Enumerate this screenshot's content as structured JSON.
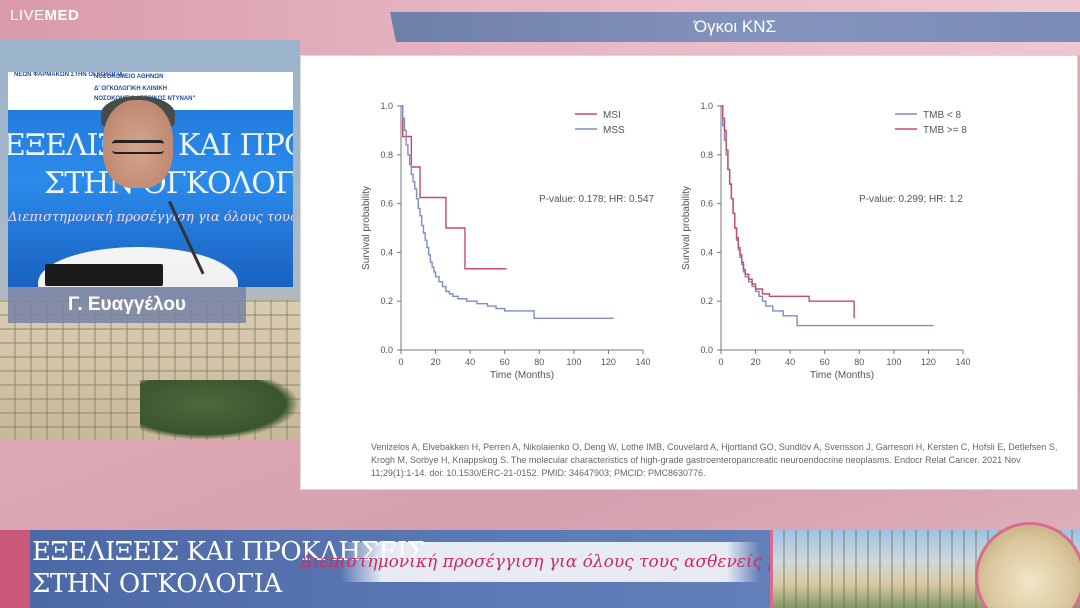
{
  "header": {
    "logo_light": "LIVE",
    "logo_bold": "MED",
    "session_title": "Όγκοι ΚΝΣ"
  },
  "speaker": {
    "name": "Γ. Ευαγγέλου",
    "backdrop_line1": "ΕΞΕΛΙΞΕΙΣ ΚΑΙ ΠΡΟΚΛΗΣΕΙΣ",
    "backdrop_line2": "ΣΤΗΝ ΟΓΚΟΛΟΓΙΑ",
    "backdrop_slogan": "Διεπιστημονική προσέγγιση για όλους τους ασθενείς μας",
    "backdrop_org1": "ΝΕΩΝ ΦΑΡΜΑΚΩΝ ΣΤΗΝ ΟΓΚΟΛΟΓΙΑ",
    "backdrop_org2": "ΝΟΣΟΚΟΜΕΙΟ ΑΘΗΝΩΝ",
    "backdrop_org3": "Δ' ΟΓΚΟΛΟΓΙΚΗ ΚΛΙΝΙΚΗ",
    "backdrop_org4": "ΝΟΣΟΚΟΜΕΙΟ \"ΕΡΡΙΚΟΣ ΝΤΥΝΑΝ\""
  },
  "slide": {
    "citation": "Venizelos A, Elvebakken H, Perren A, Nikolaienko O, Deng W, Lothe IMB, Couvelard A, Hjortland GO, Sundlöv A, Svensson J, Garresori H, Kersten C, Hofsli E, Detlefsen S, Krogh M, Sorbye H, Knappskog S. The molecular characteristics of high-grade gastroenteropancreatic neuroendocrine neoplasms. Endocr Relat Cancer. 2021 Nov 11;29(1):1-14. doi: 10.1530/ERC-21-0152. PMID: 34647903; PMCID: PMC8630776."
  },
  "chart_data": [
    {
      "type": "line",
      "xlabel": "Time (Months)",
      "ylabel": "Survival probability",
      "xlim": [
        0,
        140
      ],
      "ylim": [
        0,
        1.0
      ],
      "xticks": [
        0,
        20,
        40,
        60,
        80,
        100,
        120,
        140
      ],
      "yticks": [
        0.0,
        0.2,
        0.4,
        0.6,
        0.8,
        1.0
      ],
      "annotation": "P-value: 0.178; HR: 0.547",
      "legend_position": "top-right",
      "series": [
        {
          "name": "MSI",
          "color": "#c9496a",
          "step_points": [
            [
              0,
              1.0
            ],
            [
              1,
              0.875
            ],
            [
              5,
              0.875
            ],
            [
              6,
              0.75
            ],
            [
              10,
              0.75
            ],
            [
              11,
              0.625
            ],
            [
              25,
              0.625
            ],
            [
              26,
              0.5
            ],
            [
              36,
              0.5
            ],
            [
              37,
              0.333
            ],
            [
              61,
              0.333
            ]
          ]
        },
        {
          "name": "MSS",
          "color": "#7e8cc8",
          "step_points": [
            [
              0,
              1.0
            ],
            [
              1,
              0.95
            ],
            [
              2,
              0.9
            ],
            [
              3,
              0.84
            ],
            [
              4,
              0.8
            ],
            [
              5,
              0.76
            ],
            [
              6,
              0.72
            ],
            [
              7,
              0.69
            ],
            [
              8,
              0.66
            ],
            [
              9,
              0.62
            ],
            [
              10,
              0.58
            ],
            [
              11,
              0.55
            ],
            [
              12,
              0.51
            ],
            [
              13,
              0.48
            ],
            [
              14,
              0.45
            ],
            [
              15,
              0.42
            ],
            [
              16,
              0.39
            ],
            [
              17,
              0.36
            ],
            [
              18,
              0.34
            ],
            [
              19,
              0.32
            ],
            [
              20,
              0.3
            ],
            [
              22,
              0.28
            ],
            [
              24,
              0.26
            ],
            [
              26,
              0.24
            ],
            [
              28,
              0.23
            ],
            [
              30,
              0.22
            ],
            [
              33,
              0.21
            ],
            [
              38,
              0.2
            ],
            [
              44,
              0.19
            ],
            [
              50,
              0.18
            ],
            [
              55,
              0.17
            ],
            [
              60,
              0.16
            ],
            [
              76,
              0.16
            ],
            [
              77,
              0.13
            ],
            [
              123,
              0.13
            ]
          ]
        }
      ]
    },
    {
      "type": "line",
      "xlabel": "Time (Months)",
      "ylabel": "Survival probability",
      "xlim": [
        0,
        140
      ],
      "ylim": [
        0,
        1.0
      ],
      "xticks": [
        0,
        20,
        40,
        60,
        80,
        100,
        120,
        140
      ],
      "yticks": [
        0.0,
        0.2,
        0.4,
        0.6,
        0.8,
        1.0
      ],
      "annotation": "P-value: 0.299; HR: 1.2",
      "legend_position": "top-right",
      "series": [
        {
          "name": "TMB < 8",
          "color": "#7e8cc8",
          "step_points": [
            [
              0,
              1.0
            ],
            [
              1,
              0.92
            ],
            [
              2,
              0.86
            ],
            [
              3,
              0.8
            ],
            [
              4,
              0.74
            ],
            [
              5,
              0.68
            ],
            [
              6,
              0.62
            ],
            [
              7,
              0.56
            ],
            [
              8,
              0.5
            ],
            [
              9,
              0.45
            ],
            [
              10,
              0.41
            ],
            [
              11,
              0.38
            ],
            [
              12,
              0.35
            ],
            [
              13,
              0.32
            ],
            [
              14,
              0.3
            ],
            [
              16,
              0.28
            ],
            [
              18,
              0.26
            ],
            [
              20,
              0.24
            ],
            [
              22,
              0.22
            ],
            [
              24,
              0.2
            ],
            [
              26,
              0.18
            ],
            [
              30,
              0.16
            ],
            [
              36,
              0.14
            ],
            [
              44,
              0.1
            ],
            [
              123,
              0.1
            ]
          ]
        },
        {
          "name": "TMB >= 8",
          "color": "#c9496a",
          "step_points": [
            [
              0,
              1.0
            ],
            [
              1,
              0.95
            ],
            [
              2,
              0.9
            ],
            [
              3,
              0.82
            ],
            [
              4,
              0.74
            ],
            [
              5,
              0.68
            ],
            [
              6,
              0.62
            ],
            [
              7,
              0.56
            ],
            [
              8,
              0.5
            ],
            [
              9,
              0.46
            ],
            [
              10,
              0.42
            ],
            [
              11,
              0.39
            ],
            [
              12,
              0.36
            ],
            [
              13,
              0.33
            ],
            [
              14,
              0.31
            ],
            [
              16,
              0.29
            ],
            [
              18,
              0.27
            ],
            [
              20,
              0.25
            ],
            [
              24,
              0.23
            ],
            [
              28,
              0.22
            ],
            [
              50,
              0.22
            ],
            [
              51,
              0.2
            ],
            [
              76,
              0.2
            ],
            [
              77,
              0.13
            ]
          ]
        }
      ]
    }
  ],
  "banner": {
    "title_line1": "ΕΞΕΛΙΞΕΙΣ ΚΑΙ ΠΡΟΚΛΗΣΕΙΣ",
    "title_line2": "ΣΤΗΝ ΟΓΚΟΛΟΓΙΑ",
    "slogan": "Διεπιστημονική προσέγγιση για όλους τους ασθενείς μας"
  }
}
